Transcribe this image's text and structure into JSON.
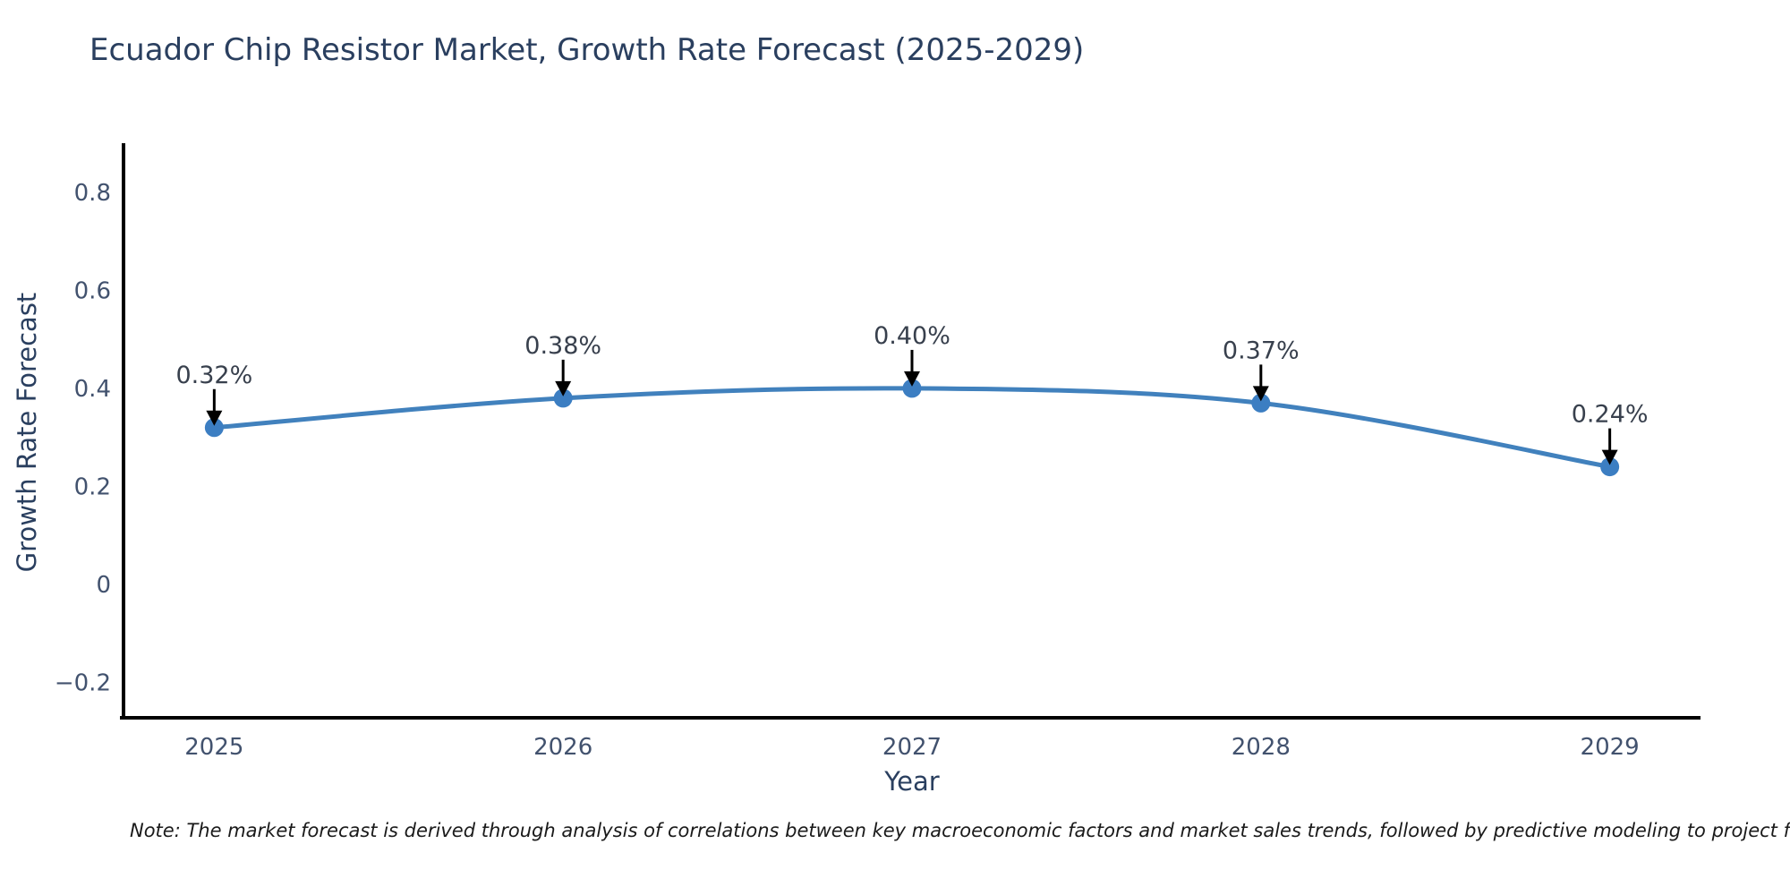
{
  "title": "Ecuador Chip Resistor Market, Growth Rate Forecast (2025-2029)",
  "note": {
    "text": "Note: The market forecast is derived through analysis of correlations between key macroeconomic factors and market sales trends, followed by predictive modeling to project future sales"
  },
  "colors": {
    "background": "#ffffff",
    "title": "#2a3f5f",
    "axis_title": "#2a3f5f",
    "tick_label": "#42526e",
    "annotation_text": "#38404d",
    "line": "#4181bd",
    "marker": "#3c7ec2",
    "axis_line": "#000000",
    "arrow": "#000000"
  },
  "chart_data": {
    "type": "line",
    "title": "Ecuador Chip Resistor Market, Growth Rate Forecast (2025-2029)",
    "categories": [
      "2025",
      "2026",
      "2027",
      "2028",
      "2029"
    ],
    "x": [
      2025,
      2026,
      2027,
      2028,
      2029
    ],
    "series": [
      {
        "name": "Growth Rate Forecast",
        "values": [
          0.32,
          0.38,
          0.4,
          0.37,
          0.24
        ]
      }
    ],
    "point_labels": [
      "0.32%",
      "0.38%",
      "0.40%",
      "0.37%",
      "0.24%"
    ],
    "xlabel": "Year",
    "ylabel": "Growth Rate Forecast",
    "yticks": [
      -0.2,
      0,
      0.2,
      0.4,
      0.6,
      0.8
    ],
    "ytick_labels": [
      "−0.2",
      "0",
      "0.2",
      "0.4",
      "0.6",
      "0.8"
    ],
    "xlim": [
      2024.74,
      2029.26
    ],
    "ylim": [
      -0.27,
      0.9
    ],
    "grid": false,
    "legend": "none",
    "line_shape": "spline",
    "annotations": "arrow-down-to-point"
  }
}
